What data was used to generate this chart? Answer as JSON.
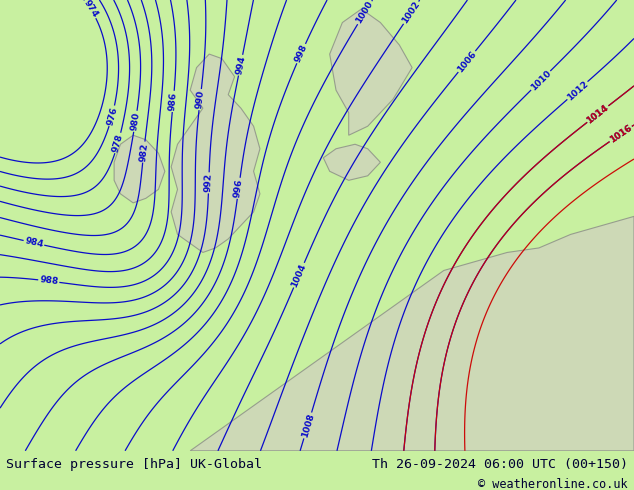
{
  "title_left": "Surface pressure [hPa] UK-Global",
  "title_right": "Th 26-09-2024 06:00 UTC (00+150)",
  "copyright": "© weatheronline.co.uk",
  "bg_color": "#c8f0a0",
  "land_color": "#c8f0a0",
  "sea_color": "#d8f8c0",
  "isobar_color_blue": "#0000cc",
  "isobar_color_red": "#cc0000",
  "text_color_bottom": "#000066",
  "font_size_bottom": 10,
  "pressure_levels": [
    976,
    978,
    980,
    982,
    984,
    986,
    988,
    990,
    992,
    994,
    996,
    998,
    1000,
    1002,
    1004,
    1006,
    1008,
    1010,
    1012,
    1014,
    1016
  ],
  "figsize": [
    6.34,
    4.9
  ],
  "dpi": 100
}
